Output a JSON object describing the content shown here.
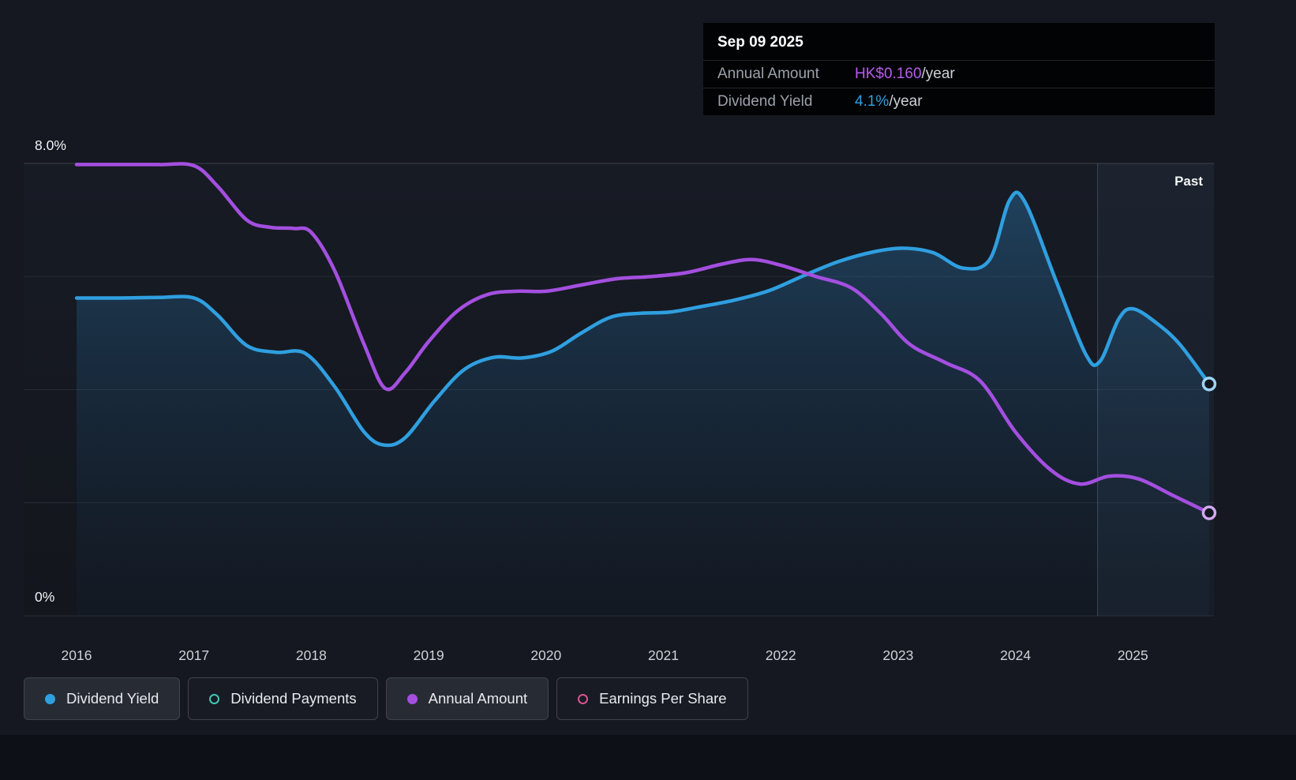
{
  "chart": {
    "past_label": "Past"
  },
  "axis": {
    "y_top": "8.0%",
    "y_bottom": "0%"
  },
  "tooltip": {
    "date": "Sep 09 2025",
    "rows": [
      {
        "label": "Annual Amount",
        "value": "HK$0.160",
        "suffix": "/year",
        "color": "#b75cf0"
      },
      {
        "label": "Dividend Yield",
        "value": "4.1%",
        "suffix": "/year",
        "color": "#2f9fe0"
      }
    ]
  },
  "legend": [
    {
      "label": "Dividend Yield",
      "marker": "filled",
      "color": "#2f9fe0",
      "active": true
    },
    {
      "label": "Dividend Payments",
      "marker": "open",
      "color": "#3fc7b4",
      "active": false
    },
    {
      "label": "Annual Amount",
      "marker": "filled",
      "color": "#a44fe0",
      "active": true
    },
    {
      "label": "Earnings Per Share",
      "marker": "open",
      "color": "#d9548f",
      "active": false
    }
  ],
  "chart_data": {
    "type": "line",
    "title": "Dividend history",
    "x_tick_labels": [
      "2016",
      "2017",
      "2018",
      "2019",
      "2020",
      "2021",
      "2022",
      "2023",
      "2024",
      "2025"
    ],
    "x_tick_years": [
      2016,
      2017,
      2018,
      2019,
      2020,
      2021,
      2022,
      2023,
      2024,
      2025
    ],
    "xlim": [
      2015.55,
      2025.7
    ],
    "ylim": [
      0,
      8
    ],
    "y_axis": "Dividend Yield (%)",
    "y_gridlines": [
      0,
      2,
      4,
      6,
      8
    ],
    "grid": true,
    "legend_position": "bottom",
    "past_region_start": 2024.7,
    "series": [
      {
        "name": "Dividend Yield",
        "unit": "%",
        "color": "#2f9fe0",
        "end_marker_ring": "#9ed3f5",
        "area_fill": true,
        "current_value": "4.1%/year",
        "points": [
          [
            2016.0,
            5.62
          ],
          [
            2016.35,
            5.62
          ],
          [
            2016.7,
            5.63
          ],
          [
            2017.0,
            5.62
          ],
          [
            2017.2,
            5.32
          ],
          [
            2017.45,
            4.78
          ],
          [
            2017.7,
            4.66
          ],
          [
            2017.95,
            4.64
          ],
          [
            2018.2,
            4.05
          ],
          [
            2018.45,
            3.25
          ],
          [
            2018.62,
            3.02
          ],
          [
            2018.8,
            3.15
          ],
          [
            2019.05,
            3.8
          ],
          [
            2019.3,
            4.35
          ],
          [
            2019.55,
            4.57
          ],
          [
            2019.8,
            4.56
          ],
          [
            2020.05,
            4.68
          ],
          [
            2020.3,
            5.0
          ],
          [
            2020.55,
            5.28
          ],
          [
            2020.8,
            5.35
          ],
          [
            2021.05,
            5.37
          ],
          [
            2021.3,
            5.46
          ],
          [
            2021.6,
            5.58
          ],
          [
            2021.9,
            5.75
          ],
          [
            2022.2,
            6.02
          ],
          [
            2022.5,
            6.27
          ],
          [
            2022.8,
            6.44
          ],
          [
            2023.05,
            6.5
          ],
          [
            2023.3,
            6.42
          ],
          [
            2023.55,
            6.15
          ],
          [
            2023.78,
            6.3
          ],
          [
            2023.95,
            7.35
          ],
          [
            2024.08,
            7.32
          ],
          [
            2024.35,
            5.9
          ],
          [
            2024.6,
            4.62
          ],
          [
            2024.72,
            4.5
          ],
          [
            2024.88,
            5.25
          ],
          [
            2025.0,
            5.43
          ],
          [
            2025.2,
            5.18
          ],
          [
            2025.4,
            4.8
          ],
          [
            2025.65,
            4.1
          ]
        ]
      },
      {
        "name": "Annual Amount",
        "unit": "plotted on hidden amount scale",
        "color": "#a44fe0",
        "end_marker_ring": "#d2a8ef",
        "area_fill": false,
        "current_value": "HK$0.160/year",
        "points": [
          [
            2016.0,
            7.98
          ],
          [
            2016.35,
            7.98
          ],
          [
            2016.7,
            7.98
          ],
          [
            2017.0,
            7.96
          ],
          [
            2017.2,
            7.6
          ],
          [
            2017.45,
            7.0
          ],
          [
            2017.65,
            6.87
          ],
          [
            2017.85,
            6.85
          ],
          [
            2018.0,
            6.78
          ],
          [
            2018.2,
            6.1
          ],
          [
            2018.45,
            4.8
          ],
          [
            2018.63,
            4.02
          ],
          [
            2018.8,
            4.3
          ],
          [
            2019.0,
            4.85
          ],
          [
            2019.25,
            5.4
          ],
          [
            2019.5,
            5.68
          ],
          [
            2019.75,
            5.74
          ],
          [
            2020.0,
            5.74
          ],
          [
            2020.3,
            5.85
          ],
          [
            2020.6,
            5.96
          ],
          [
            2020.9,
            6.0
          ],
          [
            2021.2,
            6.07
          ],
          [
            2021.5,
            6.22
          ],
          [
            2021.75,
            6.3
          ],
          [
            2022.0,
            6.2
          ],
          [
            2022.3,
            6.0
          ],
          [
            2022.6,
            5.8
          ],
          [
            2022.85,
            5.35
          ],
          [
            2023.1,
            4.8
          ],
          [
            2023.4,
            4.48
          ],
          [
            2023.7,
            4.15
          ],
          [
            2024.0,
            3.25
          ],
          [
            2024.3,
            2.58
          ],
          [
            2024.55,
            2.33
          ],
          [
            2024.8,
            2.47
          ],
          [
            2025.05,
            2.42
          ],
          [
            2025.35,
            2.12
          ],
          [
            2025.65,
            1.82
          ]
        ]
      }
    ]
  }
}
